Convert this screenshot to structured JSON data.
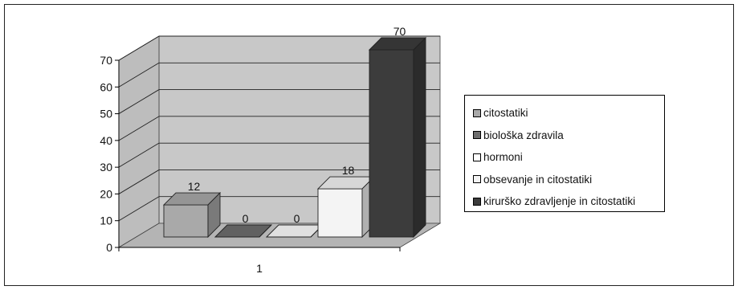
{
  "chart_data": {
    "type": "bar",
    "style": "3d-clustered-column",
    "categories": [
      "1"
    ],
    "ylim": [
      0,
      70
    ],
    "yticks": [
      0,
      10,
      20,
      30,
      40,
      50,
      60,
      70
    ],
    "grid": true,
    "legend_position": "right",
    "series": [
      {
        "name": "citostatiki",
        "values": [
          12
        ],
        "color": "#a9a9a9"
      },
      {
        "name": "biološka zdravila",
        "values": [
          0
        ],
        "color": "#6e6e6e"
      },
      {
        "name": "hormoni",
        "values": [
          0
        ],
        "color": "#ffffff"
      },
      {
        "name": "obsevanje in citostatiki",
        "values": [
          18
        ],
        "color": "#f4f4f4"
      },
      {
        "name": "kirurško zdravljenje in citostatiki",
        "values": [
          70
        ],
        "color": "#3c3c3c"
      }
    ],
    "data_labels": [
      "12",
      "0",
      "0",
      "18",
      "70"
    ]
  }
}
